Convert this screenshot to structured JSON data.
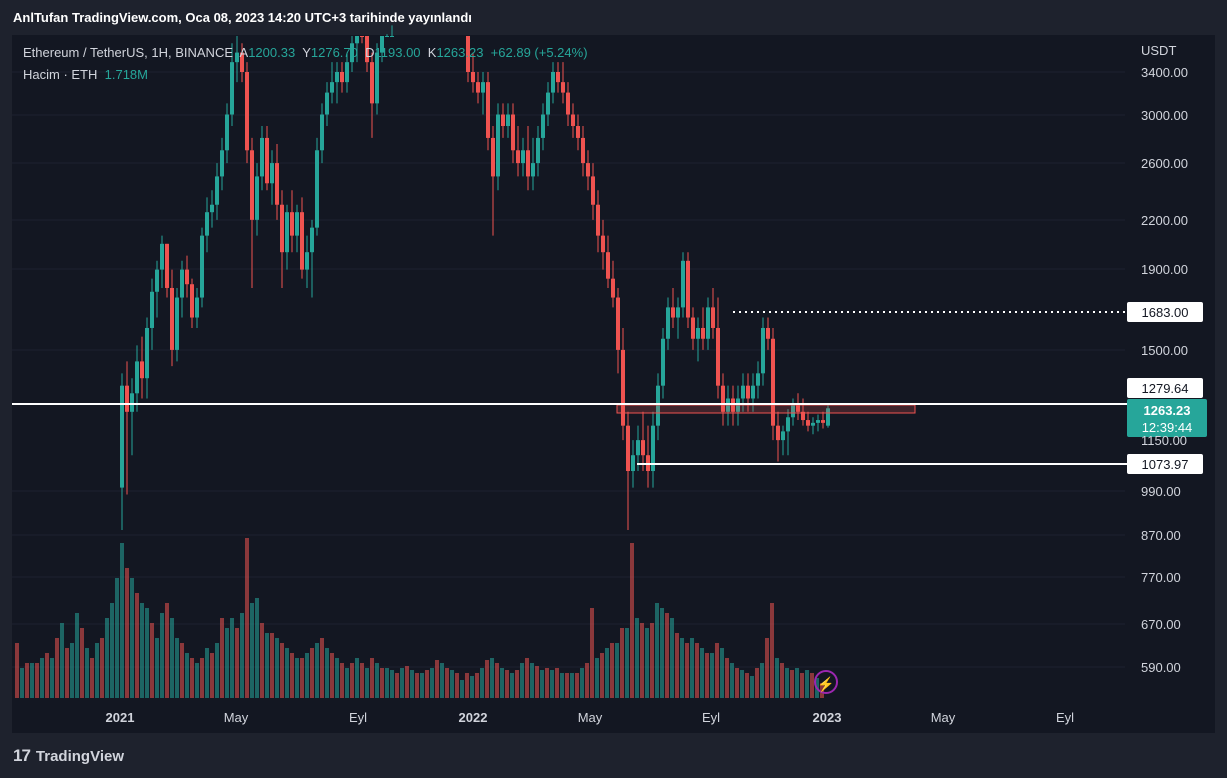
{
  "header": {
    "publish_text": "AnlTufan TradingView.com, Oca 08, 2023 14:20 UTC+3 tarihinde yayınlandı"
  },
  "legend": {
    "symbol": "Ethereum / TetherUS, 1H, BINANCE",
    "open_label": "A",
    "open": "1200.33",
    "high_label": "Y",
    "high": "1276.70",
    "low_label": "D",
    "low": "1193.00",
    "close_label": "K",
    "close": "1263.23",
    "change": "+62.89 (+5.24%)"
  },
  "volume_legend": {
    "label": "Hacim · ETH",
    "value": "1.718M"
  },
  "footer": {
    "brand": "TradingView",
    "logo_text": "17"
  },
  "colors": {
    "up": "#26a69a",
    "down": "#ef5350",
    "background": "#131722",
    "frame": "#1e222d",
    "alert_bolt": "#9c27b0"
  },
  "chart_data": {
    "type": "candlestick",
    "currency": "USDT",
    "scale": "log",
    "y_ticks": [
      "3400.00",
      "3000.00",
      "2600.00",
      "2200.00",
      "1900.00",
      "1500.00",
      "990.00",
      "870.00",
      "770.00",
      "670.00",
      "590.00"
    ],
    "x_ticks": [
      "2021",
      "May",
      "Eyl",
      "2022",
      "May",
      "Eyl",
      "2023",
      "May",
      "Eyl"
    ],
    "price_labels": [
      {
        "value": "1683.00",
        "style": "dotted"
      },
      {
        "value": "1279.64",
        "style": "solid"
      },
      {
        "value": "1263.23",
        "sub": "12:39:44",
        "style": "current"
      },
      {
        "value": "1150.00",
        "style": "tick"
      },
      {
        "value": "1073.97",
        "style": "solid"
      }
    ],
    "volume_axis": [
      "870.00",
      "770.00",
      "670.00",
      "590.00"
    ]
  }
}
